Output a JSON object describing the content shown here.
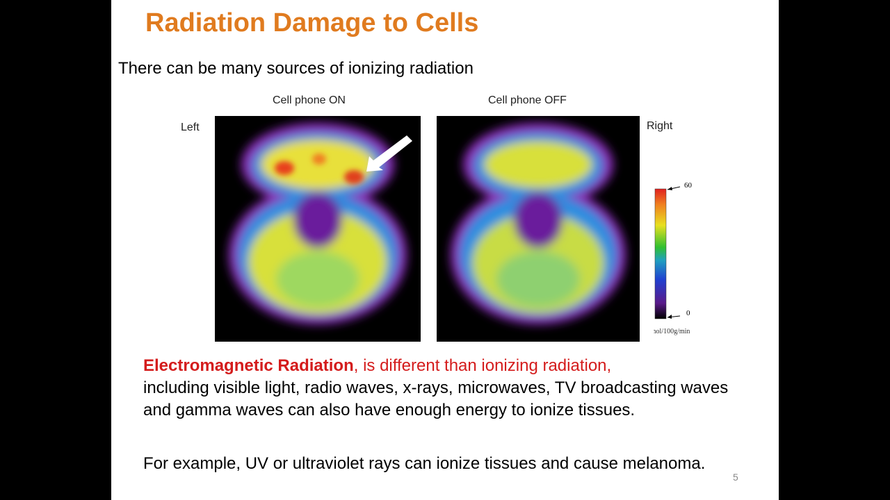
{
  "slide": {
    "title": "Radiation Damage to Cells",
    "subtitle": "There can be many sources of ionizing radiation",
    "figure": {
      "captions": [
        "Cell phone ON",
        "Cell phone OFF"
      ],
      "left_label": "Left",
      "right_label": "Right",
      "colorbar": {
        "max": "60",
        "min": "0",
        "unit": "µmol/100g/min"
      }
    },
    "paragraphs": [
      {
        "highlight": "Electromagnetic Radiation",
        "highlight_rest": ", is different than ionizing radiation,",
        "text": "including visible light, radio waves, x-rays, microwaves, TV broadcasting waves and gamma waves can also have enough energy to ionize tissues."
      },
      {
        "text": "For example, UV or ultraviolet rays can ionize tissues and cause melanoma."
      }
    ],
    "page_number": "5"
  }
}
